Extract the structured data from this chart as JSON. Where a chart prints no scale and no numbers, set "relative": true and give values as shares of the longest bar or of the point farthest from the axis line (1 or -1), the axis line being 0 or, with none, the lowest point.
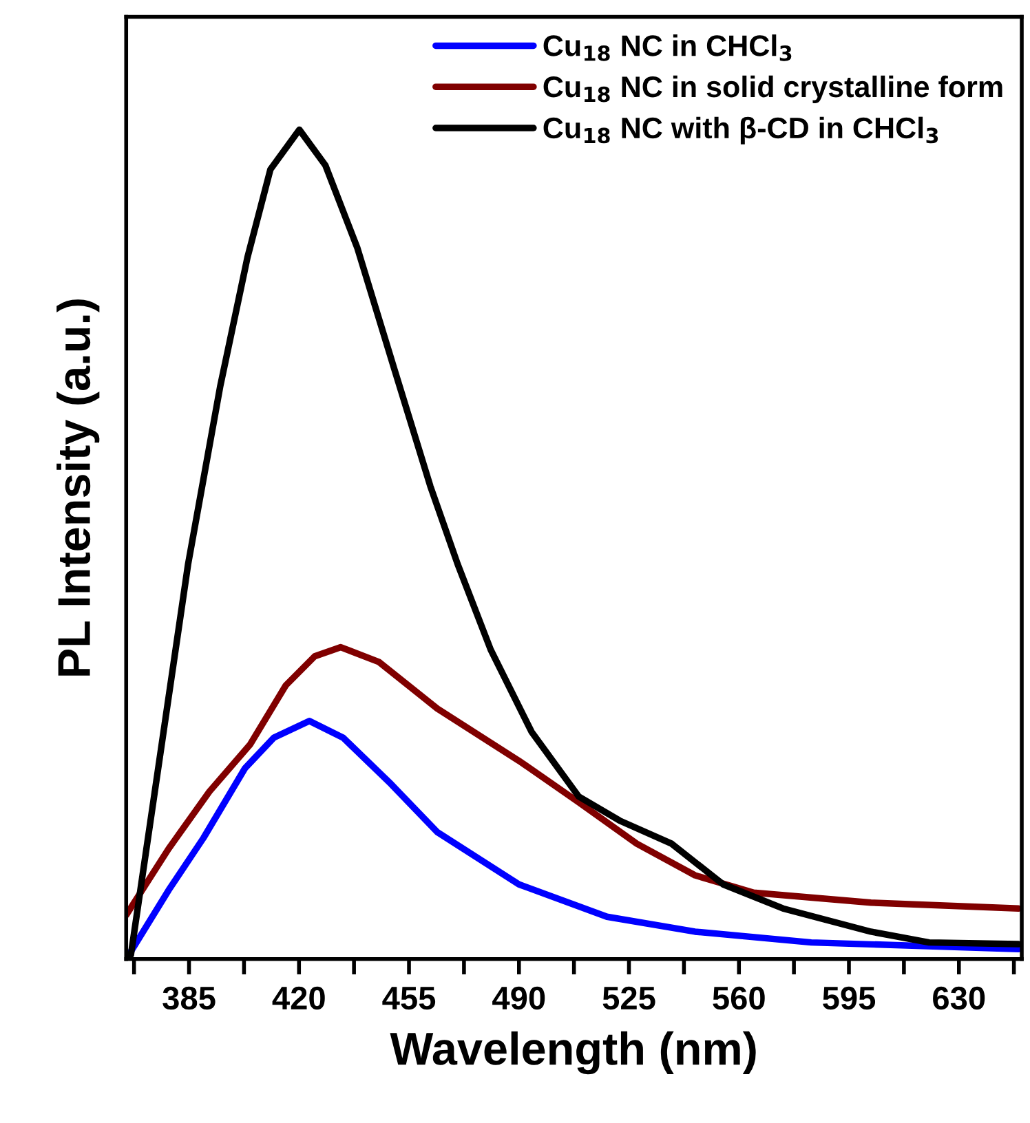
{
  "chart_data": {
    "type": "line",
    "relative": true,
    "xlabel": "Wavelength (nm)",
    "ylabel": "PL Intensity (a.u.)",
    "xlim": [
      365,
      650
    ],
    "xticks": [
      {
        "value": 367.5,
        "label": null
      },
      385,
      {
        "value": 402.5,
        "label": null
      },
      420,
      {
        "value": 437.5,
        "label": null
      },
      455,
      {
        "value": 472.5,
        "label": null
      },
      490,
      {
        "value": 507.5,
        "label": null
      },
      525,
      {
        "value": 542.5,
        "label": null
      },
      560,
      {
        "value": 577.5,
        "label": null
      },
      595,
      {
        "value": 612.5,
        "label": null
      },
      630,
      {
        "value": 647.5,
        "label": null
      }
    ],
    "legend": "top right",
    "grid": false,
    "tick_labels": "x",
    "line_style": "solid",
    "marker": "none",
    "series": [
      {
        "name": "Cu$_{18}$ NC in CHCl$_{3}$",
        "color": "#0000ff",
        "x": [
          365,
          365.5,
          378.5,
          389.6,
          402.8,
          412,
          423.3,
          434,
          449.3,
          464,
          490,
          518,
          546,
          583,
          649
        ],
        "values": [
          0,
          0.003,
          0.083,
          0.146,
          0.23,
          0.267,
          0.287,
          0.267,
          0.211,
          0.153,
          0.09,
          0.051,
          0.033,
          0.02,
          0.012
        ]
      },
      {
        "name": "Cu$_{18}$ NC in solid crystalline form",
        "color": "#800000",
        "x": [
          365,
          378.5,
          391.5,
          404.5,
          415.8,
          425,
          433.3,
          445.5,
          464,
          490,
          509,
          527.5,
          546,
          564.7,
          602,
          649
        ],
        "values": [
          0.053,
          0.133,
          0.202,
          0.259,
          0.33,
          0.365,
          0.376,
          0.358,
          0.302,
          0.239,
          0.189,
          0.139,
          0.101,
          0.08,
          0.068,
          0.061
        ]
      },
      {
        "name": "Cu$_{18}$ NC with β-CD in CHCl$_{3}$",
        "color": "#000000",
        "x": [
          365,
          366.5,
          384.7,
          394.9,
          403.6,
          410.9,
          420.1,
          428.4,
          438.6,
          450.2,
          461.8,
          470.5,
          481,
          494,
          509,
          522,
          538.6,
          555,
          574,
          602,
          620.5,
          649
        ],
        "values": [
          0,
          0.005,
          0.476,
          0.69,
          0.846,
          0.952,
          1,
          0.957,
          0.857,
          0.713,
          0.57,
          0.476,
          0.373,
          0.274,
          0.196,
          0.167,
          0.139,
          0.09,
          0.061,
          0.033,
          0.02,
          0.018
        ]
      }
    ]
  }
}
